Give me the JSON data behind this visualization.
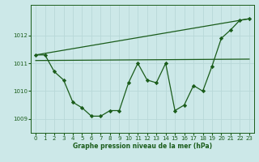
{
  "background_color": "#cce8e8",
  "grid_color": "#b8d8d8",
  "line_color": "#1a5c1a",
  "xlabel": "Graphe pression niveau de la mer (hPa)",
  "xlim": [
    -0.5,
    23.5
  ],
  "ylim": [
    1008.5,
    1013.1
  ],
  "yticks": [
    1009,
    1010,
    1011,
    1012
  ],
  "xticks": [
    0,
    1,
    2,
    3,
    4,
    5,
    6,
    7,
    8,
    9,
    10,
    11,
    12,
    13,
    14,
    15,
    16,
    17,
    18,
    19,
    20,
    21,
    22,
    23
  ],
  "series1_x": [
    0,
    1,
    2,
    3,
    4,
    5,
    6,
    7,
    8,
    9,
    10,
    11,
    12,
    13,
    14,
    15,
    16,
    17,
    18,
    19,
    20,
    21,
    22,
    23
  ],
  "series1_y": [
    1011.3,
    1011.3,
    1010.7,
    1010.4,
    1009.6,
    1009.4,
    1009.1,
    1009.1,
    1009.3,
    1009.3,
    1010.3,
    1011.0,
    1010.4,
    1010.3,
    1011.0,
    1009.3,
    1009.5,
    1010.2,
    1010.0,
    1010.9,
    1011.9,
    1012.2,
    1012.55,
    1012.6
  ],
  "series2_x": [
    0,
    23
  ],
  "series2_y": [
    1011.3,
    1012.6
  ],
  "series3_x": [
    0,
    23
  ],
  "series3_y": [
    1011.1,
    1011.15
  ],
  "marker": "D",
  "markersize": 2.2,
  "linewidth": 0.9,
  "tick_fontsize": 5.0,
  "xlabel_fontsize": 5.5
}
